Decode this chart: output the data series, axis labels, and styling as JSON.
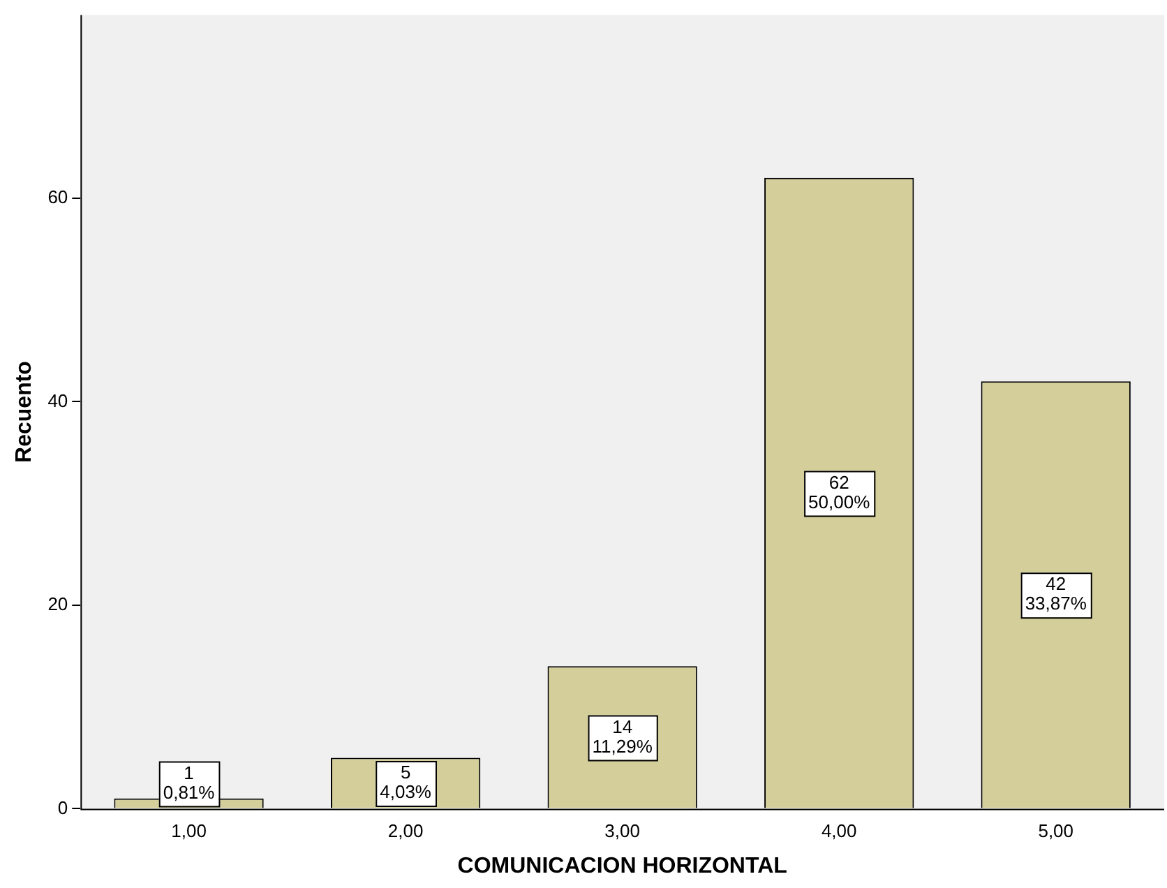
{
  "chart_data": {
    "type": "bar",
    "xlabel": "COMUNICACION HORIZONTAL",
    "ylabel": "Recuento",
    "categories": [
      "1,00",
      "2,00",
      "3,00",
      "4,00",
      "5,00"
    ],
    "values": [
      1,
      5,
      14,
      62,
      42
    ],
    "color": "#d3ce9a",
    "value_labels": [
      "1\n0,81%",
      "5\n4,03%",
      "14\n11,29%",
      "62\n50,00%",
      "42\n33,87%"
    ],
    "ylim": [
      0,
      78
    ],
    "yticks": [
      0,
      20,
      40,
      60
    ],
    "grid": false,
    "legend": false
  }
}
